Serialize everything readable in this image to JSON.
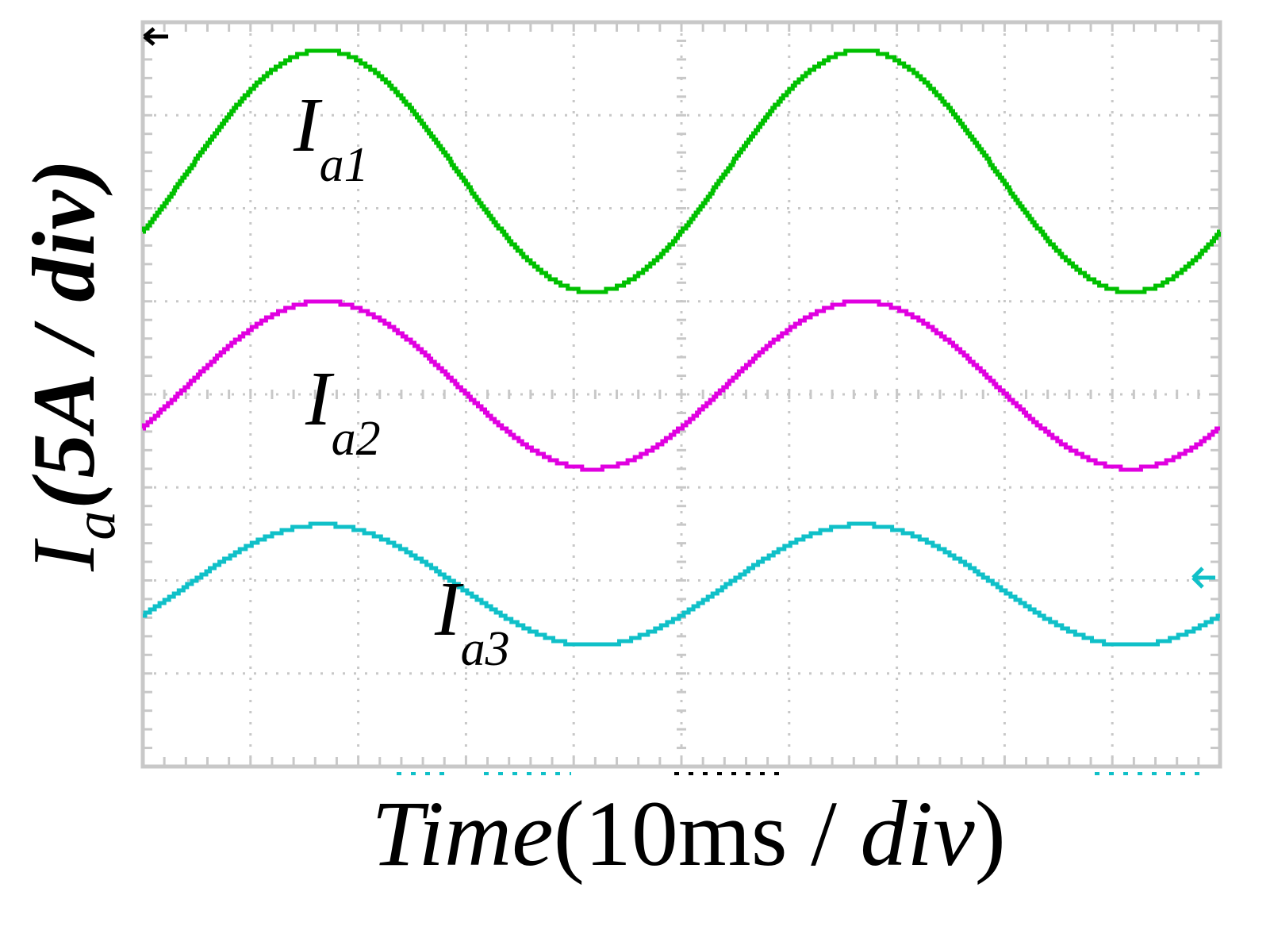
{
  "chart_data": {
    "type": "line",
    "xlabel": "Time(10ms / div)",
    "ylabel": "I_a(5A / div)",
    "ylabel_parts": {
      "main": "I",
      "sub": "a",
      "rest": "(5A / div)"
    },
    "xlabel_parts": {
      "italic1": "Time",
      "normal": "(10ms / ",
      "italic2": "div",
      "close": ")"
    },
    "grid": true,
    "x_divisions": 10,
    "y_divisions": 8,
    "x_unit_per_div": "10ms",
    "y_unit_per_div": "5A",
    "xlim": [
      0,
      100
    ],
    "frequency_hz": 20,
    "series": [
      {
        "name": "I_a1",
        "label_main": "I",
        "label_sub": "a1",
        "color": "#00c000",
        "amplitude_div": 1.3,
        "offset_div": 6.4,
        "phase_deg": -30
      },
      {
        "name": "I_a2",
        "label_main": "I",
        "label_sub": "a2",
        "color": "#e000e0",
        "amplitude_div": 0.9,
        "offset_div": 4.1,
        "phase_deg": -30
      },
      {
        "name": "I_a3",
        "label_main": "I",
        "label_sub": "a3",
        "color": "#10c0c8",
        "amplitude_div": 0.65,
        "offset_div": 1.95,
        "phase_deg": -30
      }
    ]
  }
}
